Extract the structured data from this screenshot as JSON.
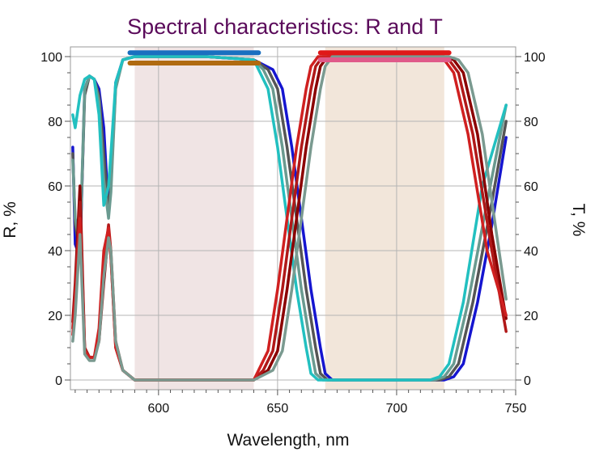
{
  "chart_data": {
    "type": "line",
    "title": "Spectral characteristics: R and T",
    "title_color": "#5a0a5a",
    "xlabel": "Wavelength, nm",
    "ylabel_left": "R, %",
    "ylabel_right": "T, %",
    "xlim": [
      563,
      750
    ],
    "ylim": [
      -3,
      103
    ],
    "x_ticks": [
      "600",
      "650",
      "700",
      "750"
    ],
    "y_ticks_left": [
      "0",
      "20",
      "40",
      "60",
      "80",
      "100"
    ],
    "y_ticks_right": [
      "0",
      "20",
      "40",
      "60",
      "80",
      "100"
    ],
    "grid": true,
    "shaded_regions": [
      {
        "x": [
          590,
          640
        ],
        "color": "#f0e4e4"
      },
      {
        "x": [
          670,
          720
        ],
        "color": "#f2e6da"
      }
    ],
    "target_bars": [
      {
        "x": [
          588,
          642
        ],
        "y": 101.2,
        "color": "#1a6fc0"
      },
      {
        "x": [
          588,
          642
        ],
        "y": 98.0,
        "color": "#b06a10"
      },
      {
        "x": [
          668,
          722
        ],
        "y": 101.2,
        "color": "#e01818"
      },
      {
        "x": [
          668,
          722
        ],
        "y": 99.0,
        "color": "#e05a8a"
      }
    ],
    "series": [
      {
        "kind": "R",
        "color": "#1515d0",
        "x": [
          564,
          565,
          567,
          569,
          571,
          573,
          575,
          577,
          579,
          580,
          582,
          585,
          590,
          600,
          620,
          640,
          648,
          652,
          656,
          660,
          664,
          668,
          670,
          673,
          680,
          700,
          720,
          724,
          728,
          734,
          740,
          746
        ],
        "y": [
          72,
          42,
          38,
          90,
          94,
          93,
          90,
          78,
          52,
          62,
          92,
          99,
          100,
          100,
          100,
          99,
          96,
          90,
          72,
          50,
          28,
          10,
          2,
          0,
          0,
          0,
          0,
          1,
          5,
          24,
          48,
          75
        ]
      },
      {
        "kind": "R",
        "color": "#555555",
        "x": [
          564,
          565,
          567,
          569,
          571,
          573,
          575,
          577,
          579,
          580,
          582,
          585,
          590,
          600,
          620,
          640,
          646,
          650,
          654,
          658,
          662,
          666,
          668,
          671,
          680,
          700,
          718,
          722,
          726,
          732,
          740,
          746
        ],
        "y": [
          70,
          48,
          40,
          88,
          94,
          93,
          88,
          70,
          52,
          60,
          91,
          99,
          100,
          100,
          100,
          99,
          96,
          90,
          72,
          50,
          28,
          10,
          2,
          0,
          0,
          0,
          0,
          1,
          5,
          24,
          55,
          80
        ]
      },
      {
        "kind": "R",
        "color": "#6a9a90",
        "x": [
          564,
          565,
          567,
          569,
          571,
          573,
          575,
          577,
          579,
          580,
          582,
          585,
          590,
          600,
          620,
          640,
          644,
          648,
          652,
          656,
          660,
          664,
          666,
          669,
          680,
          700,
          716,
          720,
          724,
          730,
          738,
          746
        ],
        "y": [
          68,
          50,
          42,
          90,
          94,
          93,
          86,
          62,
          50,
          58,
          90,
          99,
          100,
          100,
          100,
          99,
          96,
          90,
          72,
          50,
          28,
          10,
          2,
          0,
          0,
          0,
          0,
          1,
          5,
          24,
          55,
          85
        ]
      },
      {
        "kind": "R",
        "color": "#22c0c0",
        "x": [
          564,
          565,
          567,
          569,
          571,
          573,
          575,
          577,
          579,
          580,
          582,
          585,
          590,
          600,
          620,
          640,
          642,
          646,
          650,
          654,
          658,
          662,
          664,
          667,
          680,
          700,
          714,
          718,
          722,
          728,
          736,
          746
        ],
        "y": [
          82,
          78,
          88,
          93,
          94,
          93,
          82,
          54,
          60,
          70,
          92,
          99,
          100,
          100,
          100,
          99,
          96,
          90,
          72,
          50,
          28,
          10,
          2,
          0,
          0,
          0,
          0,
          1,
          5,
          24,
          60,
          85
        ]
      },
      {
        "kind": "T",
        "color": "#8b0000",
        "x": [
          564,
          565,
          567,
          569,
          571,
          573,
          575,
          577,
          579,
          580,
          582,
          585,
          590,
          600,
          620,
          640,
          646,
          650,
          654,
          658,
          662,
          666,
          668,
          671,
          680,
          700,
          720,
          724,
          728,
          734,
          740,
          746
        ],
        "y": [
          18,
          30,
          60,
          10,
          7,
          7,
          12,
          30,
          46,
          38,
          10,
          3,
          0,
          0,
          0,
          0,
          3,
          9,
          28,
          50,
          72,
          90,
          97,
          100,
          100,
          100,
          100,
          99,
          95,
          76,
          45,
          19
        ]
      },
      {
        "kind": "T",
        "color": "#b01818",
        "x": [
          564,
          565,
          567,
          569,
          571,
          573,
          575,
          577,
          579,
          580,
          582,
          585,
          590,
          600,
          620,
          640,
          644,
          648,
          652,
          656,
          660,
          664,
          666,
          669,
          680,
          700,
          718,
          722,
          726,
          732,
          740,
          746
        ],
        "y": [
          16,
          28,
          55,
          10,
          7,
          7,
          14,
          36,
          48,
          40,
          12,
          3,
          0,
          0,
          0,
          0,
          3,
          9,
          28,
          50,
          72,
          90,
          97,
          100,
          100,
          100,
          100,
          99,
          95,
          76,
          40,
          15
        ]
      },
      {
        "kind": "T",
        "color": "#d02020",
        "x": [
          564,
          565,
          567,
          569,
          571,
          573,
          575,
          577,
          579,
          580,
          582,
          585,
          590,
          600,
          620,
          640,
          642,
          646,
          650,
          654,
          658,
          662,
          664,
          667,
          680,
          700,
          716,
          720,
          724,
          730,
          738,
          746
        ],
        "y": [
          14,
          25,
          50,
          9,
          7,
          7,
          16,
          40,
          47,
          38,
          10,
          3,
          0,
          0,
          0,
          0,
          3,
          9,
          28,
          50,
          72,
          90,
          97,
          100,
          100,
          100,
          100,
          99,
          95,
          76,
          40,
          20
        ]
      },
      {
        "kind": "T",
        "color": "#7a9a90",
        "x": [
          564,
          565,
          567,
          569,
          571,
          573,
          575,
          577,
          579,
          580,
          582,
          585,
          590,
          600,
          620,
          640,
          648,
          652,
          656,
          660,
          664,
          668,
          670,
          673,
          680,
          700,
          722,
          726,
          730,
          736,
          742,
          746
        ],
        "y": [
          12,
          20,
          45,
          8,
          6,
          6,
          12,
          32,
          44,
          40,
          12,
          3,
          0,
          0,
          0,
          0,
          3,
          9,
          28,
          50,
          72,
          90,
          97,
          100,
          100,
          100,
          100,
          99,
          95,
          76,
          45,
          25
        ]
      }
    ]
  }
}
